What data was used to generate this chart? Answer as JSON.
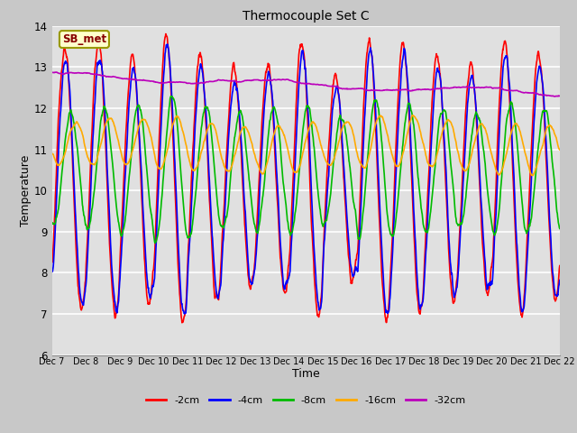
{
  "title": "Thermocouple Set C",
  "xlabel": "Time",
  "ylabel": "Temperature",
  "ylim": [
    6.0,
    14.0
  ],
  "yticks": [
    6.0,
    7.0,
    8.0,
    9.0,
    10.0,
    11.0,
    12.0,
    13.0,
    14.0
  ],
  "fig_bg_color": "#c8c8c8",
  "plot_bg_color": "#e0e0e0",
  "annotation_text": "SB_met",
  "annotation_bg": "#ffffcc",
  "annotation_border": "#999900",
  "annotation_text_color": "#880000",
  "legend_entries": [
    "-2cm",
    "-4cm",
    "-8cm",
    "-16cm",
    "-32cm"
  ],
  "line_colors": [
    "#ff0000",
    "#0000ff",
    "#00bb00",
    "#ffaa00",
    "#bb00bb"
  ],
  "line_widths": [
    1.2,
    1.2,
    1.2,
    1.2,
    1.2
  ],
  "xtick_labels": [
    "Dec 7",
    "Dec 8",
    "Dec 9",
    "Dec 10",
    "Dec 11",
    "Dec 12",
    "Dec 13",
    "Dec 14",
    "Dec 15",
    "Dec 16",
    "Dec 17",
    "Dec 18",
    "Dec 19",
    "Dec 20",
    "Dec 21",
    "Dec 22"
  ]
}
